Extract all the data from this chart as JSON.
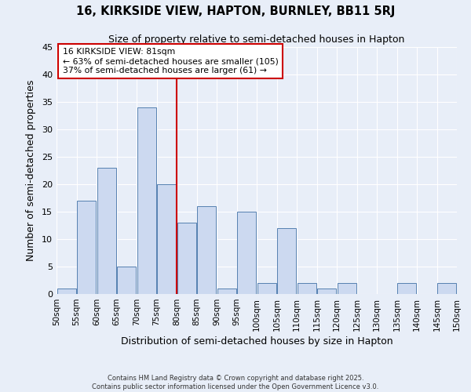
{
  "title": "16, KIRKSIDE VIEW, HAPTON, BURNLEY, BB11 5RJ",
  "subtitle": "Size of property relative to semi-detached houses in Hapton",
  "xlabel": "Distribution of semi-detached houses by size in Hapton",
  "ylabel": "Number of semi-detached properties",
  "bins": [
    50,
    55,
    60,
    65,
    70,
    75,
    80,
    85,
    90,
    95,
    100,
    105,
    110,
    115,
    120,
    125,
    130,
    135,
    140,
    145,
    150
  ],
  "counts": [
    1,
    17,
    23,
    5,
    34,
    20,
    13,
    16,
    1,
    15,
    2,
    12,
    2,
    1,
    2,
    0,
    0,
    2,
    0,
    2
  ],
  "bar_color": "#ccd9f0",
  "bar_edge_color": "#5580b0",
  "vline_x": 80,
  "vline_color": "#cc0000",
  "annotation_title": "16 KIRKSIDE VIEW: 81sqm",
  "annotation_line1": "← 63% of semi-detached houses are smaller (105)",
  "annotation_line2": "37% of semi-detached houses are larger (61) →",
  "annotation_box_color": "#cc0000",
  "ylim": [
    0,
    45
  ],
  "yticks": [
    0,
    5,
    10,
    15,
    20,
    25,
    30,
    35,
    40,
    45
  ],
  "background_color": "#e8eef8",
  "grid_color": "#ffffff",
  "footer1": "Contains HM Land Registry data © Crown copyright and database right 2025.",
  "footer2": "Contains public sector information licensed under the Open Government Licence v3.0."
}
